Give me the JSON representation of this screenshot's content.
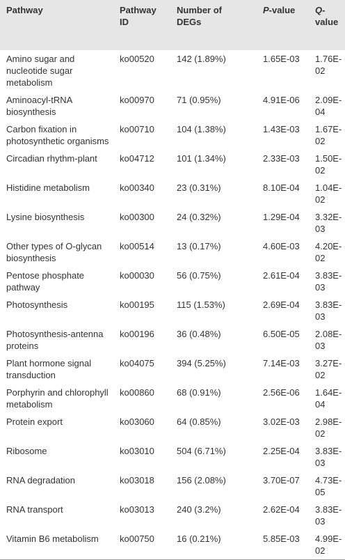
{
  "table": {
    "header": [
      "Pathway",
      "Pathway ID",
      "Number of DEGs",
      {
        "italic": "P",
        "rest": "-value"
      },
      {
        "italic": "Q",
        "rest": "-value"
      }
    ],
    "rows": [
      [
        "Amino sugar and nucleotide sugar metabolism",
        "ko00520",
        "142 (1.89%)",
        "1.65E-03",
        "1.76E-02"
      ],
      [
        "Aminoacyl-tRNA biosynthesis",
        "ko00970",
        "71 (0.95%)",
        "4.91E-06",
        "2.09E-04"
      ],
      [
        "Carbon fixation in photosynthetic organisms",
        "ko00710",
        "104 (1.38%)",
        "1.43E-03",
        "1.67E-02"
      ],
      [
        "Circadian rhythm-plant",
        "ko04712",
        "101 (1.34%)",
        "2.33E-03",
        "1.50E-02"
      ],
      [
        "Histidine metabolism",
        "ko00340",
        "23 (0.31%)",
        "8.10E-04",
        "1.04E-02"
      ],
      [
        "Lysine biosynthesis",
        "ko00300",
        "24 (0.32%)",
        "1.29E-04",
        "3.32E-03"
      ],
      [
        "Other types of O-glycan biosynthesis",
        "ko00514",
        "13 (0.17%)",
        "4.60E-03",
        "4.20E-02"
      ],
      [
        "Pentose phosphate pathway",
        "ko00030",
        "56 (0.75%)",
        "2.61E-04",
        "3.83E-03"
      ],
      [
        "Photosynthesis",
        "ko00195",
        "115 (1.53%)",
        "2.69E-04",
        "3.83E-03"
      ],
      [
        "Photosynthesis-antenna proteins",
        "ko00196",
        "36 (0.48%)",
        "6.50E-05",
        "2.08E-03"
      ],
      [
        "Plant hormone signal transduction",
        "ko04075",
        "394 (5.25%)",
        "7.14E-03",
        "3.27E-02"
      ],
      [
        "Porphyrin and chlorophyll metabolism",
        "ko00860",
        "68 (0.91%)",
        "2.56E-06",
        "1.64E-04"
      ],
      [
        "Protein export",
        "ko03060",
        "64 (0.85%)",
        "3.02E-03",
        "2.98E-02"
      ],
      [
        "Ribosome",
        "ko03010",
        "504 (6.71%)",
        "2.25E-04",
        "3.83E-03"
      ],
      [
        "RNA degradation",
        "ko03018",
        "156 (2.08%)",
        "3.70E-07",
        "4.73E-05"
      ],
      [
        "RNA transport",
        "ko03013",
        "240 (3.2%)",
        "2.62E-04",
        "3.83E-03"
      ],
      [
        "Vitamin B6 metabolism",
        "ko00750",
        "16 (0.21%)",
        "5.85E-03",
        "4.99E-02"
      ]
    ]
  }
}
